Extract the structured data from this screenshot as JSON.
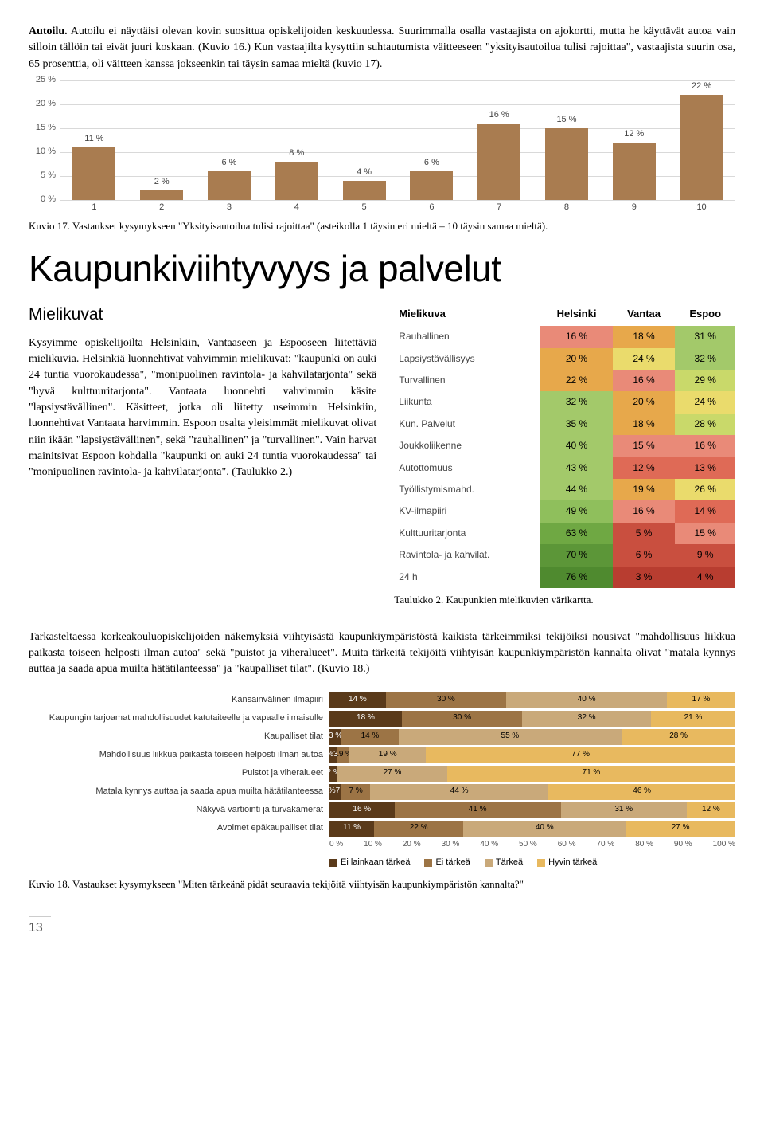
{
  "intro": {
    "heading_inline": "Autoilu.",
    "p1": "Autoilu ei näyttäisi olevan kovin suosittua opiskelijoiden keskuudessa. Suurimmalla osalla vastaajista on ajokortti, mutta he käyttävät autoa vain silloin tällöin tai eivät juuri koskaan. (Kuvio 16.) Kun vastaajilta kysyttiin suhtautumista väitteeseen \"yksityisautoilua tulisi rajoittaa\", vastaajista suurin osa, 65 prosenttia, oli väitteen kanssa jokseenkin tai täysin samaa mieltä (kuvio 17)."
  },
  "chart17": {
    "type": "bar",
    "categories": [
      "1",
      "2",
      "3",
      "4",
      "5",
      "6",
      "7",
      "8",
      "9",
      "10"
    ],
    "values": [
      11,
      2,
      6,
      8,
      4,
      6,
      16,
      15,
      12,
      22
    ],
    "bar_color": "#a97c50",
    "grid_color": "#d9d9d9",
    "ylim": [
      0,
      25
    ],
    "ytick_step": 5,
    "label_fontsize": 11,
    "caption": "Kuvio 17. Vastaukset kysymykseen \"Yksityisautoilua tulisi rajoittaa\" (asteikolla 1 täysin eri mieltä – 10 täysin samaa mieltä)."
  },
  "h1": "Kaupunkiviihtyvyys ja palvelut",
  "subhead": "Mielikuvat",
  "body2": "Kysyimme opiskelijoilta Helsinkiin, Vantaaseen ja Espooseen liitettäviä mielikuvia. Helsinkiä luonnehtivat vahvimmin mielikuvat: \"kaupunki on auki 24 tuntia vuorokaudessa\", \"monipuolinen ravintola- ja kahvilatarjonta\" sekä \"hyvä kulttuuritarjonta\". Vantaata luonnehti vahvimmin käsite \"lapsiystävällinen\". Käsitteet, jotka oli liitetty useimmin Helsinkiin, luonnehtivat Vantaata harvimmin. Espoon osalta yleisimmät mielikuvat olivat niin ikään \"lapsiystävällinen\", sekä \"rauhallinen\" ja \"turvallinen\". Vain harvat mainitsivat Espoon kohdalla \"kaupunki on auki 24 tuntia vuorokaudessa\" tai \"monipuolinen ravintola- ja kahvilatarjonta\". (Taulukko 2.)",
  "heatmap": {
    "header": {
      "c0": "Mielikuva",
      "c1": "Helsinki",
      "c2": "Vantaa",
      "c3": "Espoo"
    },
    "rows": [
      {
        "label": "Rauhallinen",
        "v": [
          "16 %",
          "18 %",
          "31 %"
        ],
        "bg": [
          "#e98a78",
          "#e7a84b",
          "#a3c96a"
        ]
      },
      {
        "label": "Lapsiystävällisyys",
        "v": [
          "20 %",
          "24 %",
          "32 %"
        ],
        "bg": [
          "#e7a84b",
          "#eadb6c",
          "#a3c96a"
        ]
      },
      {
        "label": "Turvallinen",
        "v": [
          "22 %",
          "16 %",
          "29 %"
        ],
        "bg": [
          "#e7a84b",
          "#e98a78",
          "#c9d96a"
        ]
      },
      {
        "label": "Liikunta",
        "v": [
          "32 %",
          "20 %",
          "24 %"
        ],
        "bg": [
          "#a3c96a",
          "#e7a84b",
          "#eadb6c"
        ]
      },
      {
        "label": "Kun. Palvelut",
        "v": [
          "35 %",
          "18 %",
          "28 %"
        ],
        "bg": [
          "#a3c96a",
          "#e7a84b",
          "#c9d96a"
        ]
      },
      {
        "label": "Joukkoliikenne",
        "v": [
          "40 %",
          "15 %",
          "16 %"
        ],
        "bg": [
          "#a3c96a",
          "#e98a78",
          "#e98a78"
        ]
      },
      {
        "label": "Autottomuus",
        "v": [
          "43 %",
          "12 %",
          "13 %"
        ],
        "bg": [
          "#a3c96a",
          "#df6a56",
          "#df6a56"
        ]
      },
      {
        "label": "Työllistymismahd.",
        "v": [
          "44 %",
          "19 %",
          "26 %"
        ],
        "bg": [
          "#a3c96a",
          "#e7a84b",
          "#eadb6c"
        ]
      },
      {
        "label": "KV-ilmapiiri",
        "v": [
          "49 %",
          "16 %",
          "14 %"
        ],
        "bg": [
          "#8fbf5c",
          "#e98a78",
          "#df6a56"
        ]
      },
      {
        "label": "Kulttuuritarjonta",
        "v": [
          "63 %",
          "5 %",
          "15 %"
        ],
        "bg": [
          "#6fa843",
          "#c94f3f",
          "#e98a78"
        ]
      },
      {
        "label": "Ravintola- ja kahvilat.",
        "v": [
          "70 %",
          "6 %",
          "9 %"
        ],
        "bg": [
          "#5c9638",
          "#c94f3f",
          "#c94f3f"
        ]
      },
      {
        "label": "24 h",
        "v": [
          "76 %",
          "3 %",
          "4 %"
        ],
        "bg": [
          "#4f8a2f",
          "#b83d30",
          "#b83d30"
        ]
      }
    ],
    "caption": "Taulukko 2. Kaupunkien mielikuvien värikartta."
  },
  "body3": "Tarkasteltaessa korkeakouluopiskelijoiden näkemyksiä viihtyisästä kaupunkiympäristöstä kaikista tärkeimmiksi tekijöiksi nousivat \"mahdollisuus liikkua paikasta toiseen helposti ilman autoa\" sekä \"puistot ja viheralueet\". Muita tärkeitä tekijöitä viihtyisän kaupunkiympäristön kannalta olivat \"matala kynnys auttaa ja saada apua muilta hätätilanteessa\" ja \"kaupalliset tilat\". (Kuvio 18.)",
  "stacked": {
    "colors": [
      "#5a3a1a",
      "#9c7445",
      "#c9a97a",
      "#e8b95f"
    ],
    "legend": [
      "Ei lainkaan tärkeä",
      "Ei tärkeä",
      "Tärkeä",
      "Hyvin tärkeä"
    ],
    "xticks": [
      "0 %",
      "10 %",
      "20 %",
      "30 %",
      "40 %",
      "50 %",
      "60 %",
      "70 %",
      "80 %",
      "90 %",
      "100 %"
    ],
    "rows": [
      {
        "label": "Kansainvälinen ilmapiiri",
        "seg": [
          14,
          30,
          40,
          17
        ],
        "segl": [
          "14 %",
          "30 %",
          "40 %",
          "17 %"
        ]
      },
      {
        "label": "Kaupungin tarjoamat mahdollisuudet katutaiteelle ja vapaalle ilmaisulle",
        "seg": [
          18,
          30,
          32,
          21
        ],
        "segl": [
          "18 %",
          "30 %",
          "32 %",
          "21 %"
        ]
      },
      {
        "label": "Kaupalliset tilat",
        "seg": [
          3,
          14,
          55,
          28
        ],
        "segl": [
          "3 %",
          "14 %",
          "55 %",
          "28 %"
        ]
      },
      {
        "label": "Mahdollisuus liikkua paikasta toiseen helposti ilman autoa",
        "seg": [
          2,
          3,
          19,
          77
        ],
        "segl": [
          "2 %3 %",
          "19 %",
          "",
          "77 %"
        ]
      },
      {
        "label": "Puistot ja viheralueet",
        "seg": [
          2,
          0,
          27,
          71
        ],
        "segl": [
          "2 %",
          "",
          "27 %",
          "71 %"
        ]
      },
      {
        "label": "Matala kynnys auttaa ja saada apua muilta hätätilanteessa",
        "seg": [
          3,
          7,
          44,
          46
        ],
        "segl": [
          "3 %7 %",
          "",
          "44 %",
          "46 %"
        ]
      },
      {
        "label": "Näkyvä vartiointi ja turvakamerat",
        "seg": [
          16,
          41,
          31,
          12
        ],
        "segl": [
          "16 %",
          "41 %",
          "31 %",
          "12 %"
        ]
      },
      {
        "label": "Avoimet epäkaupalliset tilat",
        "seg": [
          11,
          22,
          40,
          27
        ],
        "segl": [
          "11 %",
          "22 %",
          "40 %",
          "27 %"
        ]
      }
    ],
    "caption": "Kuvio 18. Vastaukset kysymykseen \"Miten tärkeänä pidät seuraavia tekijöitä viihtyisän kaupunkiympäristön kannalta?\""
  },
  "pagenum": "13"
}
